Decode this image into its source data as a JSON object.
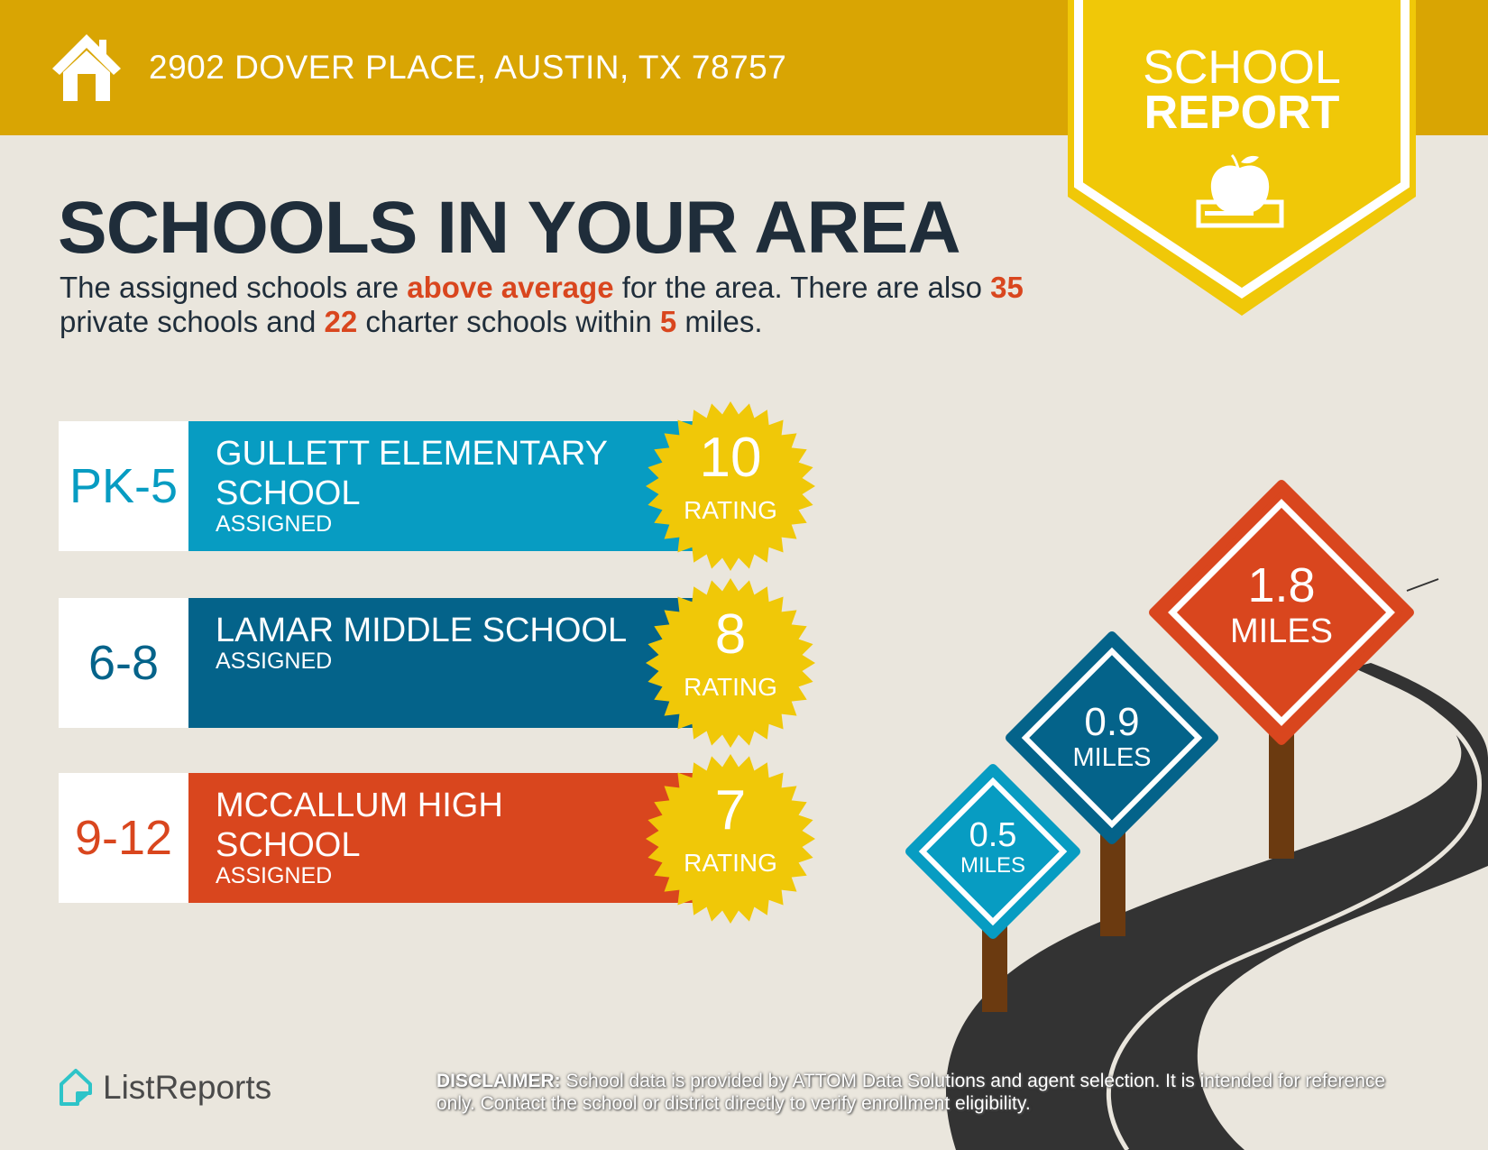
{
  "header": {
    "address": "2902 DOVER PLACE, AUSTIN, TX 78757",
    "icon": "house-icon",
    "color": "#D9A503"
  },
  "banner": {
    "line1": "SCHOOL",
    "line2": "REPORT",
    "icon": "apple-on-book-icon",
    "color": "#F0C808"
  },
  "title": "SCHOOLS IN YOUR AREA",
  "summary": {
    "p1": "The assigned schools are ",
    "highlight": "above average",
    "p2": " for the area. There are also ",
    "private_count": "35",
    "p3": " private schools and ",
    "charter_count": "22",
    "p4": " charter schools within ",
    "miles": "5",
    "p5": " miles."
  },
  "schools": [
    {
      "grades": "PK-5",
      "name": "GULLETT ELEMENTARY SCHOOL",
      "status": "ASSIGNED",
      "rating": "10",
      "rating_label": "RATING",
      "color": "#079CC2",
      "distance": "0.5",
      "distance_unit": "MILES"
    },
    {
      "grades": "6-8",
      "name": "LAMAR MIDDLE SCHOOL",
      "status": "ASSIGNED",
      "rating": "8",
      "rating_label": "RATING",
      "color": "#04638A",
      "distance": "0.9",
      "distance_unit": "MILES"
    },
    {
      "grades": "9-12",
      "name": "MCCALLUM HIGH SCHOOL",
      "status": "ASSIGNED",
      "rating": "7",
      "rating_label": "RATING",
      "color": "#D9461E",
      "distance": "1.8",
      "distance_unit": "MILES"
    }
  ],
  "footer": {
    "logo_text": "ListReports",
    "disclaimer_label": "DISCLAIMER:",
    "disclaimer_text": " School data is provided by ATTOM Data Solutions and agent selection. It is intended for reference only. Contact the school or district directly to verify enrollment eligibility."
  }
}
